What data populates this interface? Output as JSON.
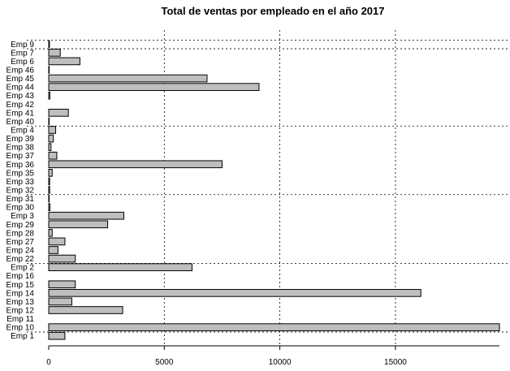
{
  "chart_data": {
    "type": "bar",
    "orientation": "horizontal",
    "title": "Total de ventas por empleado en el año 2017",
    "xlabel": "",
    "ylabel": "",
    "xlim": [
      0,
      19500
    ],
    "x_ticks": [
      0,
      5000,
      10000,
      15000
    ],
    "x_tick_labels": [
      "0",
      "5000",
      "10000",
      "15000"
    ],
    "bar_color": "#bebebe",
    "grid": "dotted",
    "vertical_gridlines_at": [
      5000,
      10000,
      15000
    ],
    "horizontal_gridlines_after": [
      "Emp 1",
      "Emp 2",
      "Emp 31",
      "Emp 4",
      "Emp 7",
      "Emp 9"
    ],
    "categories": [
      "Emp 1",
      "Emp 10",
      "Emp 11",
      "Emp 12",
      "Emp 13",
      "Emp 14",
      "Emp 15",
      "Emp 16",
      "Emp 2",
      "Emp 22",
      "Emp 24",
      "Emp 27",
      "Emp 28",
      "Emp 29",
      "Emp 3",
      "Emp 30",
      "Emp 31",
      "Emp 32",
      "Emp 33",
      "Emp 35",
      "Emp 36",
      "Emp 37",
      "Emp 38",
      "Emp 39",
      "Emp 4",
      "Emp 40",
      "Emp 41",
      "Emp 42",
      "Emp 43",
      "Emp 44",
      "Emp 45",
      "Emp 46",
      "Emp 6",
      "Emp 7",
      "Emp 9"
    ],
    "values": [
      700,
      19500,
      0,
      3200,
      1000,
      16100,
      1150,
      0,
      6200,
      1150,
      400,
      700,
      150,
      2550,
      3250,
      50,
      20,
      40,
      40,
      150,
      7500,
      350,
      100,
      200,
      300,
      20,
      850,
      0,
      50,
      9100,
      6850,
      20,
      1350,
      500,
      30
    ]
  }
}
